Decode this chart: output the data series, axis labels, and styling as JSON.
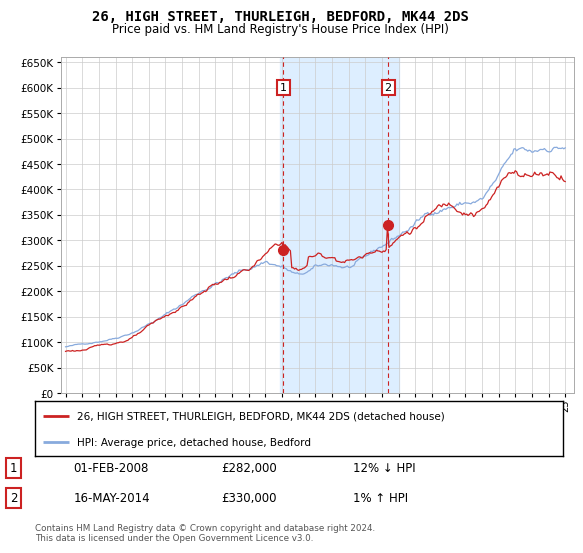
{
  "title": "26, HIGH STREET, THURLEIGH, BEDFORD, MK44 2DS",
  "subtitle": "Price paid vs. HM Land Registry's House Price Index (HPI)",
  "footer": "Contains HM Land Registry data © Crown copyright and database right 2024.\nThis data is licensed under the Open Government Licence v3.0.",
  "legend_line1": "26, HIGH STREET, THURLEIGH, BEDFORD, MK44 2DS (detached house)",
  "legend_line2": "HPI: Average price, detached house, Bedford",
  "annotation1_label": "1",
  "annotation1_date": "01-FEB-2008",
  "annotation1_price": "£282,000",
  "annotation1_hpi": "12% ↓ HPI",
  "annotation2_label": "2",
  "annotation2_date": "16-MAY-2014",
  "annotation2_price": "£330,000",
  "annotation2_hpi": "1% ↑ HPI",
  "property_color": "#cc2222",
  "hpi_color": "#88aadd",
  "highlight_color": "#ddeeff",
  "vline_color": "#cc2222",
  "annotation_box_color": "#cc2222",
  "ylim": [
    0,
    660000
  ],
  "yticks": [
    0,
    50000,
    100000,
    150000,
    200000,
    250000,
    300000,
    350000,
    400000,
    450000,
    500000,
    550000,
    600000,
    650000
  ],
  "xlim_start": 1994.7,
  "xlim_end": 2025.5,
  "marker1_x": 2008.08,
  "marker1_y": 282000,
  "marker2_x": 2014.37,
  "marker2_y": 330000,
  "vline1_x": 2008.08,
  "vline2_x": 2014.37,
  "highlight_x1": 2007.9,
  "highlight_x2": 2015.0,
  "xtick_years": [
    1995,
    1996,
    1997,
    1998,
    1999,
    2000,
    2001,
    2002,
    2003,
    2004,
    2005,
    2006,
    2007,
    2008,
    2009,
    2010,
    2011,
    2012,
    2013,
    2014,
    2015,
    2016,
    2017,
    2018,
    2019,
    2020,
    2021,
    2022,
    2023,
    2024,
    2025
  ]
}
